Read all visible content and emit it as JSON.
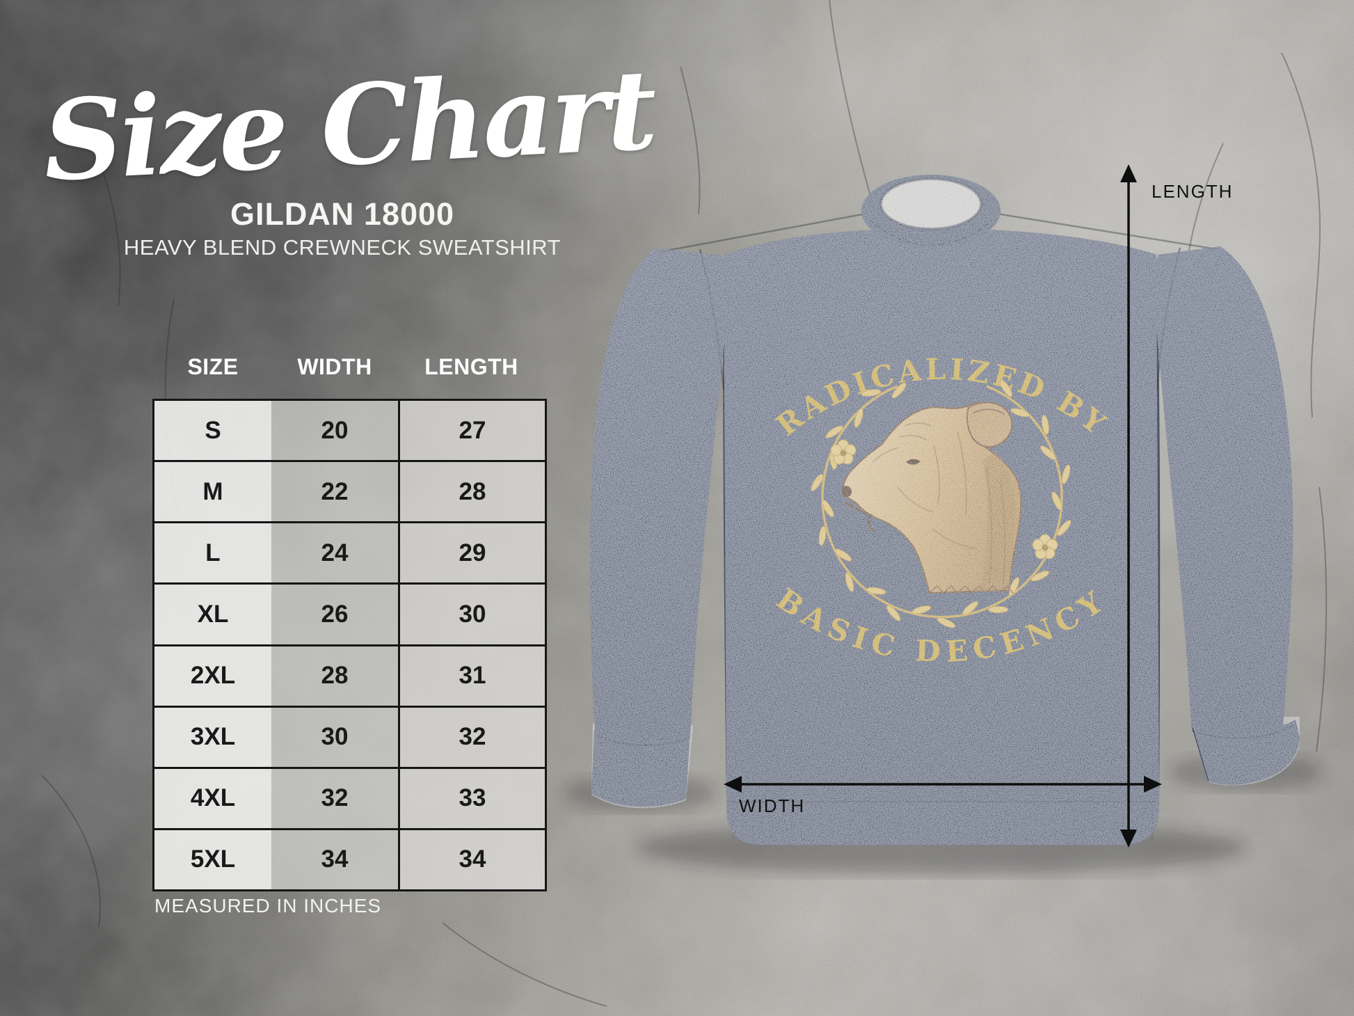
{
  "header": {
    "title": "Size Chart",
    "product_code": "GILDAN 18000",
    "product_name": "HEAVY BLEND CREWNECK SWEATSHIRT"
  },
  "size_table": {
    "columns": [
      "SIZE",
      "WIDTH",
      "LENGTH"
    ],
    "rows": [
      {
        "size": "S",
        "width": "20",
        "length": "27"
      },
      {
        "size": "M",
        "width": "22",
        "length": "28"
      },
      {
        "size": "L",
        "width": "24",
        "length": "29"
      },
      {
        "size": "XL",
        "width": "26",
        "length": "30"
      },
      {
        "size": "2XL",
        "width": "28",
        "length": "31"
      },
      {
        "size": "3XL",
        "width": "30",
        "length": "32"
      },
      {
        "size": "4XL",
        "width": "32",
        "length": "33"
      },
      {
        "size": "5XL",
        "width": "34",
        "length": "34"
      }
    ],
    "footnote": "MEASURED IN INCHES"
  },
  "garment": {
    "design_arc_top": "RADICALIZED BY",
    "design_arc_bottom": "BASIC DECENCY",
    "length_label": "LENGTH",
    "width_label": "WIDTH"
  },
  "colors": {
    "sweatshirt_navy": "#4b5468",
    "ribbing_navy": "#434c5e",
    "design_gold": "#c49e2e",
    "wreath_gold": "#d5b45c",
    "dog_tan": "#c5a268",
    "dog_line_sepia": "#6b4423",
    "arrow_black": "#0e0e0e",
    "table_border": "#151515",
    "text_white": "#ffffff"
  },
  "chart_data": {
    "type": "table",
    "title": "Size Chart",
    "subtitle": "GILDAN 18000 HEAVY BLEND CREWNECK SWEATSHIRT",
    "columns": [
      "SIZE",
      "WIDTH",
      "LENGTH"
    ],
    "units": "inches",
    "rows": [
      [
        "S",
        20,
        27
      ],
      [
        "M",
        22,
        28
      ],
      [
        "L",
        24,
        29
      ],
      [
        "XL",
        26,
        30
      ],
      [
        "2XL",
        28,
        31
      ],
      [
        "3XL",
        30,
        32
      ],
      [
        "4XL",
        32,
        33
      ],
      [
        "5XL",
        34,
        34
      ]
    ]
  }
}
